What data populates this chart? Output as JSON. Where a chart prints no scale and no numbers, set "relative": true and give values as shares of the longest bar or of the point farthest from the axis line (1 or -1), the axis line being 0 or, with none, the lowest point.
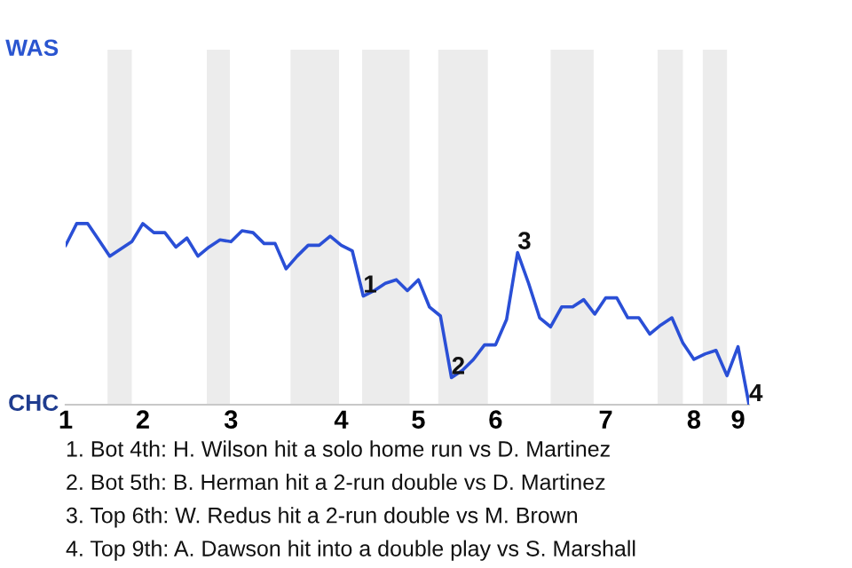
{
  "chart_data": {
    "type": "line",
    "color": "#2a4fd6",
    "relative": true,
    "categories": [
      "1",
      null,
      null,
      null,
      null,
      null,
      null,
      "2",
      null,
      null,
      null,
      null,
      null,
      null,
      null,
      "3",
      null,
      null,
      null,
      null,
      null,
      null,
      null,
      null,
      null,
      "4",
      null,
      null,
      null,
      null,
      null,
      null,
      "5",
      null,
      null,
      null,
      null,
      null,
      null,
      "6",
      null,
      null,
      null,
      null,
      null,
      null,
      null,
      null,
      null,
      "7",
      null,
      null,
      null,
      null,
      null,
      null,
      null,
      "8",
      null,
      null,
      null,
      "9",
      null
    ],
    "values": [
      0.88,
      1,
      1,
      0.91,
      0.82,
      0.86,
      0.9,
      1,
      0.95,
      0.95,
      0.87,
      0.92,
      0.82,
      0.87,
      0.91,
      0.9,
      0.96,
      0.95,
      0.89,
      0.89,
      0.75,
      0.82,
      0.88,
      0.88,
      0.93,
      0.88,
      0.85,
      0.6,
      0.63,
      0.67,
      0.69,
      0.63,
      0.69,
      0.54,
      0.49,
      0.15,
      0.19,
      0.25,
      0.33,
      0.33,
      0.47,
      0.84,
      0.67,
      0.48,
      0.43,
      0.54,
      0.54,
      0.58,
      0.5,
      0.59,
      0.59,
      0.48,
      0.48,
      0.39,
      0.44,
      0.48,
      0.34,
      0.25,
      0.28,
      0.3,
      0.16,
      0.32,
      0
    ],
    "legend": false,
    "marker": "none",
    "line_style": "solid",
    "annotations": [
      "WAS",
      "CHC",
      {
        "text": "1",
        "y": 0.6
      },
      {
        "text": "2",
        "y": 0.15
      },
      {
        "text": "3",
        "y": 0.84
      },
      {
        "text": "4",
        "y": 0
      },
      "1. Bot 4th: H. Wilson hit a solo home run vs D. Martinez",
      "2. Bot 5th: B. Herman hit a 2-run double vs D. Martinez",
      "3. Top 6th: W. Redus hit a 2-run double vs M. Brown",
      "4. Top 9th: A. Dawson hit into a double play vs S. Marshall"
    ]
  }
}
